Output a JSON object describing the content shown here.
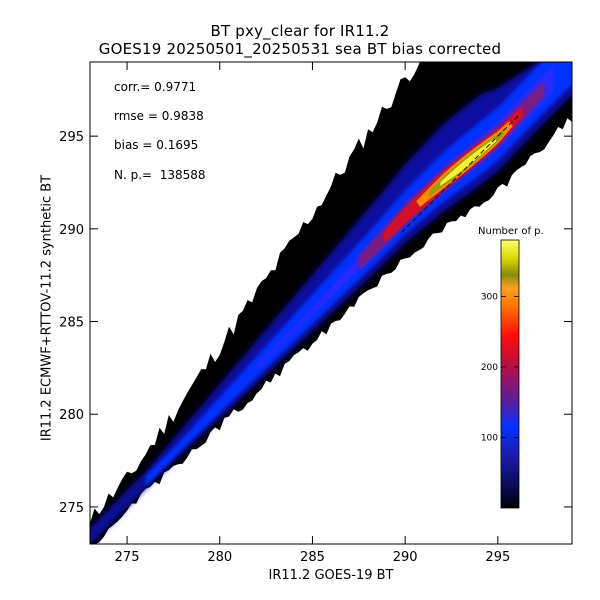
{
  "chart_data": {
    "type": "heatmap",
    "title": "BT pxy_clear for IR11.2",
    "subtitle": "GOES19 20250501_20250531 sea BT bias corrected",
    "xlabel": "IR11.2 GOES-19 BT",
    "ylabel": "IR11.2 ECMWF+RTTOV-11.2 synthetic BT",
    "xlim": [
      273,
      299
    ],
    "ylim": [
      273,
      299
    ],
    "x_ticks": [
      275,
      280,
      285,
      290,
      295
    ],
    "y_ticks": [
      275,
      280,
      285,
      290,
      295
    ],
    "x_tick_labels": [
      "275",
      "280",
      "285",
      "290",
      "295"
    ],
    "y_tick_labels": [
      "275",
      "280",
      "285",
      "290",
      "295"
    ],
    "stats": [
      {
        "label": "corr.= 0.9771"
      },
      {
        "label": "rmse = 0.9838"
      },
      {
        "label": "bias = 0.1695"
      },
      {
        "label": "N. p.=  138588"
      }
    ],
    "colorbar": {
      "title": "Number of p.",
      "range": [
        0,
        380
      ],
      "ticks": [
        100,
        200,
        300
      ],
      "tick_labels": [
        "100",
        "200",
        "300"
      ]
    },
    "density_ridge": {
      "x": [
        273,
        278,
        283,
        288,
        290,
        292,
        293.5,
        295,
        297,
        299
      ],
      "y": [
        273.3,
        278.4,
        283.5,
        288.6,
        290.7,
        292.5,
        293.7,
        294.9,
        297.0,
        299.0
      ]
    },
    "peak": {
      "x": 293.0,
      "y": 293.2,
      "count": 370
    },
    "grid": false,
    "legend_position": "right"
  }
}
